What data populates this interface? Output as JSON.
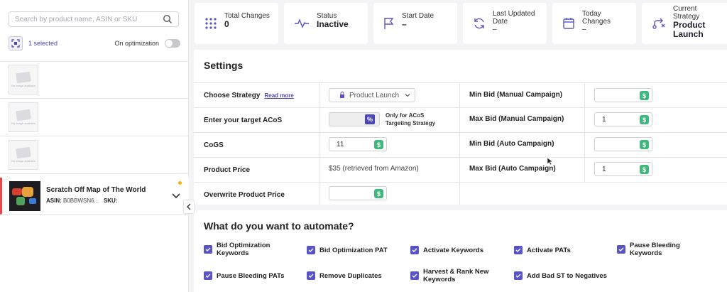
{
  "sidebar": {
    "search_placeholder": "Search by product name, ASIN or SKU",
    "selected_text": "1 selected",
    "optimization_label": "On optimization",
    "noimage_text": "No image available",
    "active_product": {
      "title": "Scratch Off Map of The World",
      "asin_label": "ASIN:",
      "asin_value": "B0BBWSN6...",
      "sku_label": "SKU:"
    }
  },
  "stats": {
    "total_changes": {
      "label": "Total Changes",
      "value": "0"
    },
    "status": {
      "label": "Status",
      "value": "Inactive"
    },
    "start_date": {
      "label": "Start Date",
      "value": "–"
    },
    "last_updated": {
      "label1": "Last Updated",
      "label2": "Date",
      "value": "–"
    },
    "today_changes": {
      "label1": "Today",
      "label2": "Changes",
      "value": "–"
    },
    "current_strategy": {
      "label1": "Current",
      "label2": "Strategy",
      "value1": "Product",
      "value2": "Launch"
    }
  },
  "settings": {
    "title": "Settings",
    "rows": {
      "choose_strategy": {
        "label": "Choose Strategy",
        "link": "Read more",
        "value": "Product Launch"
      },
      "target_acos": {
        "label": "Enter your target ACoS",
        "note1": "Only for ACoS",
        "note2": "Targeting Strategy"
      },
      "cogs": {
        "label": "CoGS",
        "value": "11"
      },
      "product_price": {
        "label": "Product Price",
        "value": "$35 (retrieved from Amazon)"
      },
      "overwrite_price": {
        "label": "Overwrite Product Price"
      }
    },
    "right": {
      "min_bid_manual": {
        "label": "Min Bid (Manual Campaign)",
        "value": ""
      },
      "max_bid_manual": {
        "label": "Max Bid (Manual Campaign)",
        "value": "1"
      },
      "min_bid_auto": {
        "label": "Min Bid (Auto Campaign)",
        "value": ""
      },
      "max_bid_auto": {
        "label": "Max Bid (Auto Campaign)",
        "value": "1"
      }
    },
    "dollar_symbol": "$",
    "percent_symbol": "%"
  },
  "automate": {
    "title": "What do you want to automate?",
    "items": [
      {
        "line1": "Bid Optimization",
        "line2": "Keywords"
      },
      {
        "line1": "Bid Optimization PAT",
        "line2": ""
      },
      {
        "line1": "Activate Keywords",
        "line2": ""
      },
      {
        "line1": "Activate PATs",
        "line2": ""
      },
      {
        "line1": "Pause Bleeding",
        "line2": "Keywords"
      },
      {
        "line1": "Pause Bleeding PATs",
        "line2": ""
      },
      {
        "line1": "Remove Duplicates",
        "line2": ""
      },
      {
        "line1": "Harvest & Rank New",
        "line2": "Keywords"
      },
      {
        "line1": "Add Bad ST to Negatives",
        "line2": ""
      }
    ]
  },
  "colors": {
    "accent": "#5a53c8",
    "success": "#3fb87b",
    "alert": "#e74848",
    "dot": "#f2b400"
  },
  "icons": [
    "search-icon",
    "select-all-icon",
    "grid-dots-icon",
    "pulse-icon",
    "flag-icon",
    "refresh-icon",
    "calendar-icon",
    "route-icon",
    "chevron-down-icon",
    "chevron-left-icon",
    "lock-icon",
    "check-icon"
  ]
}
